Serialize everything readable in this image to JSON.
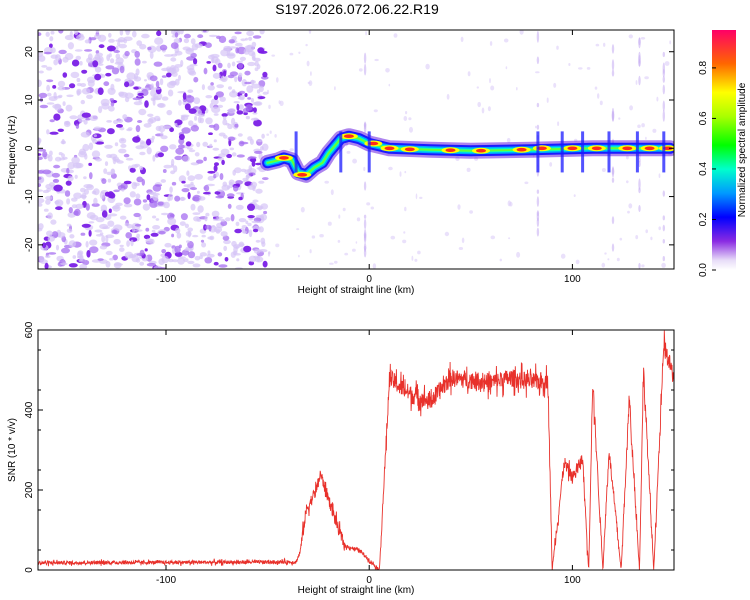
{
  "title": "S197.2026.072.06.22.R19",
  "chart_data": [
    {
      "type": "heatmap",
      "xlabel": "Height of straight line (km)",
      "ylabel": "Frequency (Hz)",
      "xlim": [
        -163,
        150
      ],
      "ylim": [
        -25,
        24.5
      ],
      "x_ticks": [
        -100,
        0,
        100
      ],
      "y_ticks": [
        20,
        10,
        0,
        -10,
        -20
      ],
      "colorbar": {
        "label": "Normalized spectral amplitude",
        "range": [
          0,
          0.95
        ],
        "ticks": [
          0.0,
          0.2,
          0.4,
          0.6,
          0.8
        ]
      },
      "noise_region_x": [
        -163,
        -51
      ],
      "signal_track": [
        {
          "x": -50,
          "y": -3
        },
        {
          "x": -45,
          "y": -2.5
        },
        {
          "x": -42,
          "y": -2
        },
        {
          "x": -38,
          "y": -2.5
        },
        {
          "x": -35,
          "y": -5
        },
        {
          "x": -31,
          "y": -5.5
        },
        {
          "x": -27,
          "y": -4
        },
        {
          "x": -23,
          "y": -3
        },
        {
          "x": -20,
          "y": -1
        },
        {
          "x": -17,
          "y": 0.5
        },
        {
          "x": -14,
          "y": 2
        },
        {
          "x": -10,
          "y": 2.5
        },
        {
          "x": -5,
          "y": 2
        },
        {
          "x": 0,
          "y": 1
        },
        {
          "x": 10,
          "y": 0
        },
        {
          "x": 30,
          "y": -0.3
        },
        {
          "x": 50,
          "y": -0.5
        },
        {
          "x": 80,
          "y": -0.3
        },
        {
          "x": 110,
          "y": 0
        },
        {
          "x": 148,
          "y": 0
        }
      ]
    },
    {
      "type": "line",
      "xlabel": "Height of straight line (km)",
      "ylabel": "SNR (10 * v/v)",
      "xlim": [
        -163,
        150
      ],
      "ylim": [
        0,
        600
      ],
      "x_ticks": [
        -100,
        0,
        100
      ],
      "y_ticks": [
        0,
        200,
        400,
        600
      ],
      "color": "#e8312b",
      "series": [
        {
          "x": [
            -163,
            -36,
            -34,
            -31,
            -26,
            -24,
            -15,
            -12,
            -5,
            5,
            10,
            20,
            30,
            40,
            50,
            60,
            70,
            80,
            88,
            90,
            96,
            100,
            105,
            108,
            110,
            115,
            118,
            124,
            128,
            133,
            135,
            140,
            145,
            150
          ],
          "values": [
            18,
            20,
            45,
            150,
            200,
            240,
            100,
            60,
            50,
            0,
            480,
            440,
            420,
            480,
            475,
            470,
            480,
            470,
            475,
            0,
            270,
            230,
            280,
            0,
            470,
            0,
            300,
            0,
            430,
            0,
            500,
            0,
            560,
            480
          ]
        }
      ]
    }
  ]
}
